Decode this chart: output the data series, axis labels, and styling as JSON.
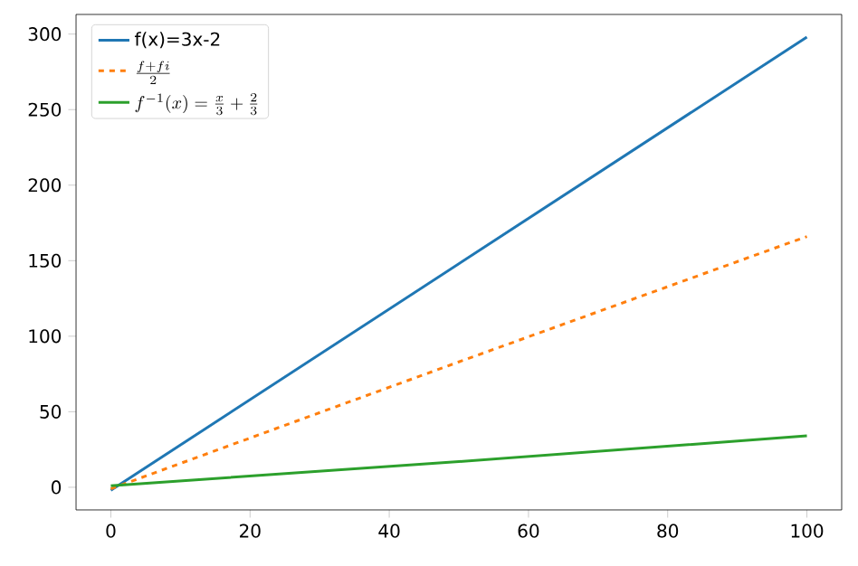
{
  "chart_data": {
    "type": "line",
    "xlim": [
      -5,
      105
    ],
    "ylim": [
      -15,
      313
    ],
    "xticks": [
      0,
      20,
      40,
      60,
      80,
      100
    ],
    "yticks": [
      0,
      50,
      100,
      150,
      200,
      250,
      300
    ],
    "legend": "top left",
    "grid": false,
    "marker": "none",
    "series": [
      {
        "name": "f(x)=3x-2",
        "color": "#1f77b4",
        "line_style": "solid",
        "x": [
          0,
          50,
          100
        ],
        "values": [
          -2,
          148,
          298
        ]
      },
      {
        "name": "\\frac{f+fi}{2}",
        "color": "#ff7f0e",
        "line_style": "dashed",
        "x": [
          0,
          50,
          100
        ],
        "values": [
          -1,
          83,
          166
        ]
      },
      {
        "name": "f^{-1}(x)=\\frac{x}{3}+\\frac{2}{3}",
        "color": "#2ca02c",
        "line_style": "solid",
        "x": [
          0,
          50,
          100
        ],
        "values": [
          1,
          17,
          34
        ]
      }
    ]
  }
}
